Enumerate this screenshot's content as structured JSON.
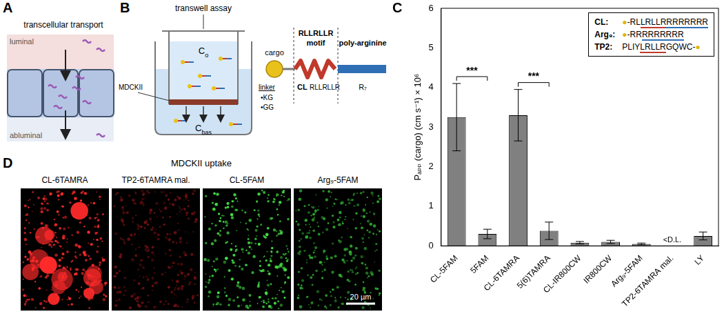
{
  "panel_a": {
    "letter": "A",
    "title": "transcellular transport",
    "top_label": "luminal",
    "bottom_label": "abluminal"
  },
  "panel_b": {
    "letter": "B",
    "title": "transwell assay",
    "donor_label": "C",
    "donor_sub": "o",
    "receiver_label": "C",
    "receiver_sub": "bas",
    "cell_label": "MDCKII",
    "cargo_label": "cargo",
    "linker_label": "linker",
    "linkers": [
      "•KG",
      "•GG"
    ],
    "motif_title": "RLLRLLR",
    "motif_word": "motif",
    "tail_title": "poly-arginine",
    "construct": [
      "CL",
      "RLLRLLR",
      "R₇"
    ]
  },
  "chart_data": {
    "type": "bar",
    "letter": "C",
    "categories": [
      "CL-5FAM",
      "5FAM",
      "CL-6TAMRA",
      "5(6)TAMRA",
      "CL-IR800CW",
      "IR800CW",
      "Arg₉-5FAM",
      "TP2-6TAMRA mal.",
      "LY"
    ],
    "values": [
      3.25,
      0.3,
      3.3,
      0.38,
      0.08,
      0.1,
      0.05,
      null,
      0.25
    ],
    "errors": [
      0.85,
      0.12,
      0.65,
      0.22,
      0.03,
      0.04,
      0.02,
      null,
      0.1
    ],
    "color": "#808080",
    "y_label": "Pₐₚₚ (cargo) (cm s⁻¹) × 10⁶",
    "ylim": [
      0,
      6
    ],
    "yticks": [
      0,
      1,
      2,
      3,
      4,
      5,
      6
    ],
    "grid": false,
    "significance": [
      {
        "from": "CL-5FAM",
        "to": "5FAM",
        "label": "***"
      },
      {
        "from": "CL-6TAMRA",
        "to": "5(6)TAMRA",
        "label": "***"
      }
    ],
    "annotations": [
      {
        "category": "TP2-6TAMRA mal.",
        "text": "<D.L."
      }
    ],
    "inset": [
      {
        "name": "CL:",
        "segments": [
          {
            "text": "●-RL"
          },
          {
            "text": "LRLLR",
            "underline": "#c0392b"
          },
          {
            "text": "RRRRRRR",
            "underline": "#2e6fb5"
          }
        ]
      },
      {
        "name": "Arg₉:",
        "segments": [
          {
            "text": "●-RR"
          },
          {
            "text": "RRRRRRR",
            "underline": "#2e6fb5"
          }
        ]
      },
      {
        "name": "TP2:",
        "segments": [
          {
            "text": "PLIY"
          },
          {
            "text": "LRLLR",
            "underline": "#c0392b"
          },
          {
            "text": "GQWC-●"
          }
        ]
      }
    ]
  },
  "panel_d": {
    "letter": "D",
    "title": "MDCKII uptake",
    "scale_bar": "20 µm",
    "images": [
      {
        "label": "CL-6TAMRA",
        "color": "#ff2a2a"
      },
      {
        "label": "TP2-6TAMRA mal.",
        "color": "#6e1010"
      },
      {
        "label": "CL-5FAM",
        "color": "#45e045"
      },
      {
        "label": "Arg₉-5FAM",
        "color": "#2fa82f"
      }
    ]
  }
}
